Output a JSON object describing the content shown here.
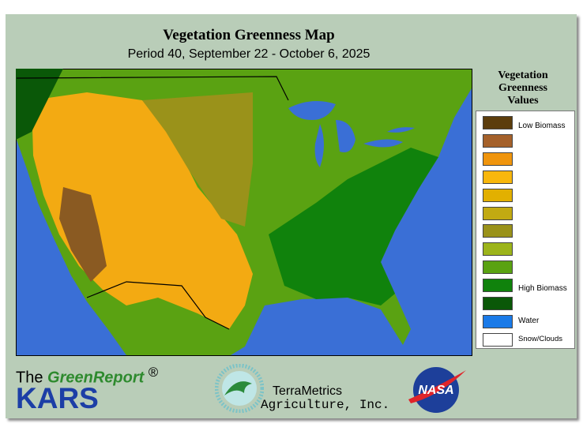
{
  "header": {
    "title": "Vegetation Greenness Map",
    "subtitle": "Period 40, September 22 - October 6, 2025"
  },
  "legend": {
    "title": [
      "Vegetation",
      "Greenness",
      "Values"
    ],
    "items": [
      {
        "color": "#5c3d0c",
        "label": "Low Biomass"
      },
      {
        "color": "#a5612a"
      },
      {
        "color": "#f0950c"
      },
      {
        "color": "#f8b70c"
      },
      {
        "color": "#e2b000"
      },
      {
        "color": "#c2aa12"
      },
      {
        "color": "#9a921a"
      },
      {
        "color": "#9cb41a"
      },
      {
        "color": "#5aa212"
      },
      {
        "color": "#10820c",
        "label": "High Biomass"
      },
      {
        "color": "#0a5808"
      },
      {
        "color": "#1a7ae8",
        "label": "Water"
      },
      {
        "color": "#ffffff",
        "label": "Snow/Clouds"
      }
    ]
  },
  "footer": {
    "left": {
      "prefix": "The",
      "brand": "GreenReport",
      "mark": "®",
      "org": "KARS"
    },
    "center": {
      "line1": "TerraMetrics",
      "line2": "Agriculture, Inc."
    },
    "right": {
      "logo": "NASA"
    }
  }
}
